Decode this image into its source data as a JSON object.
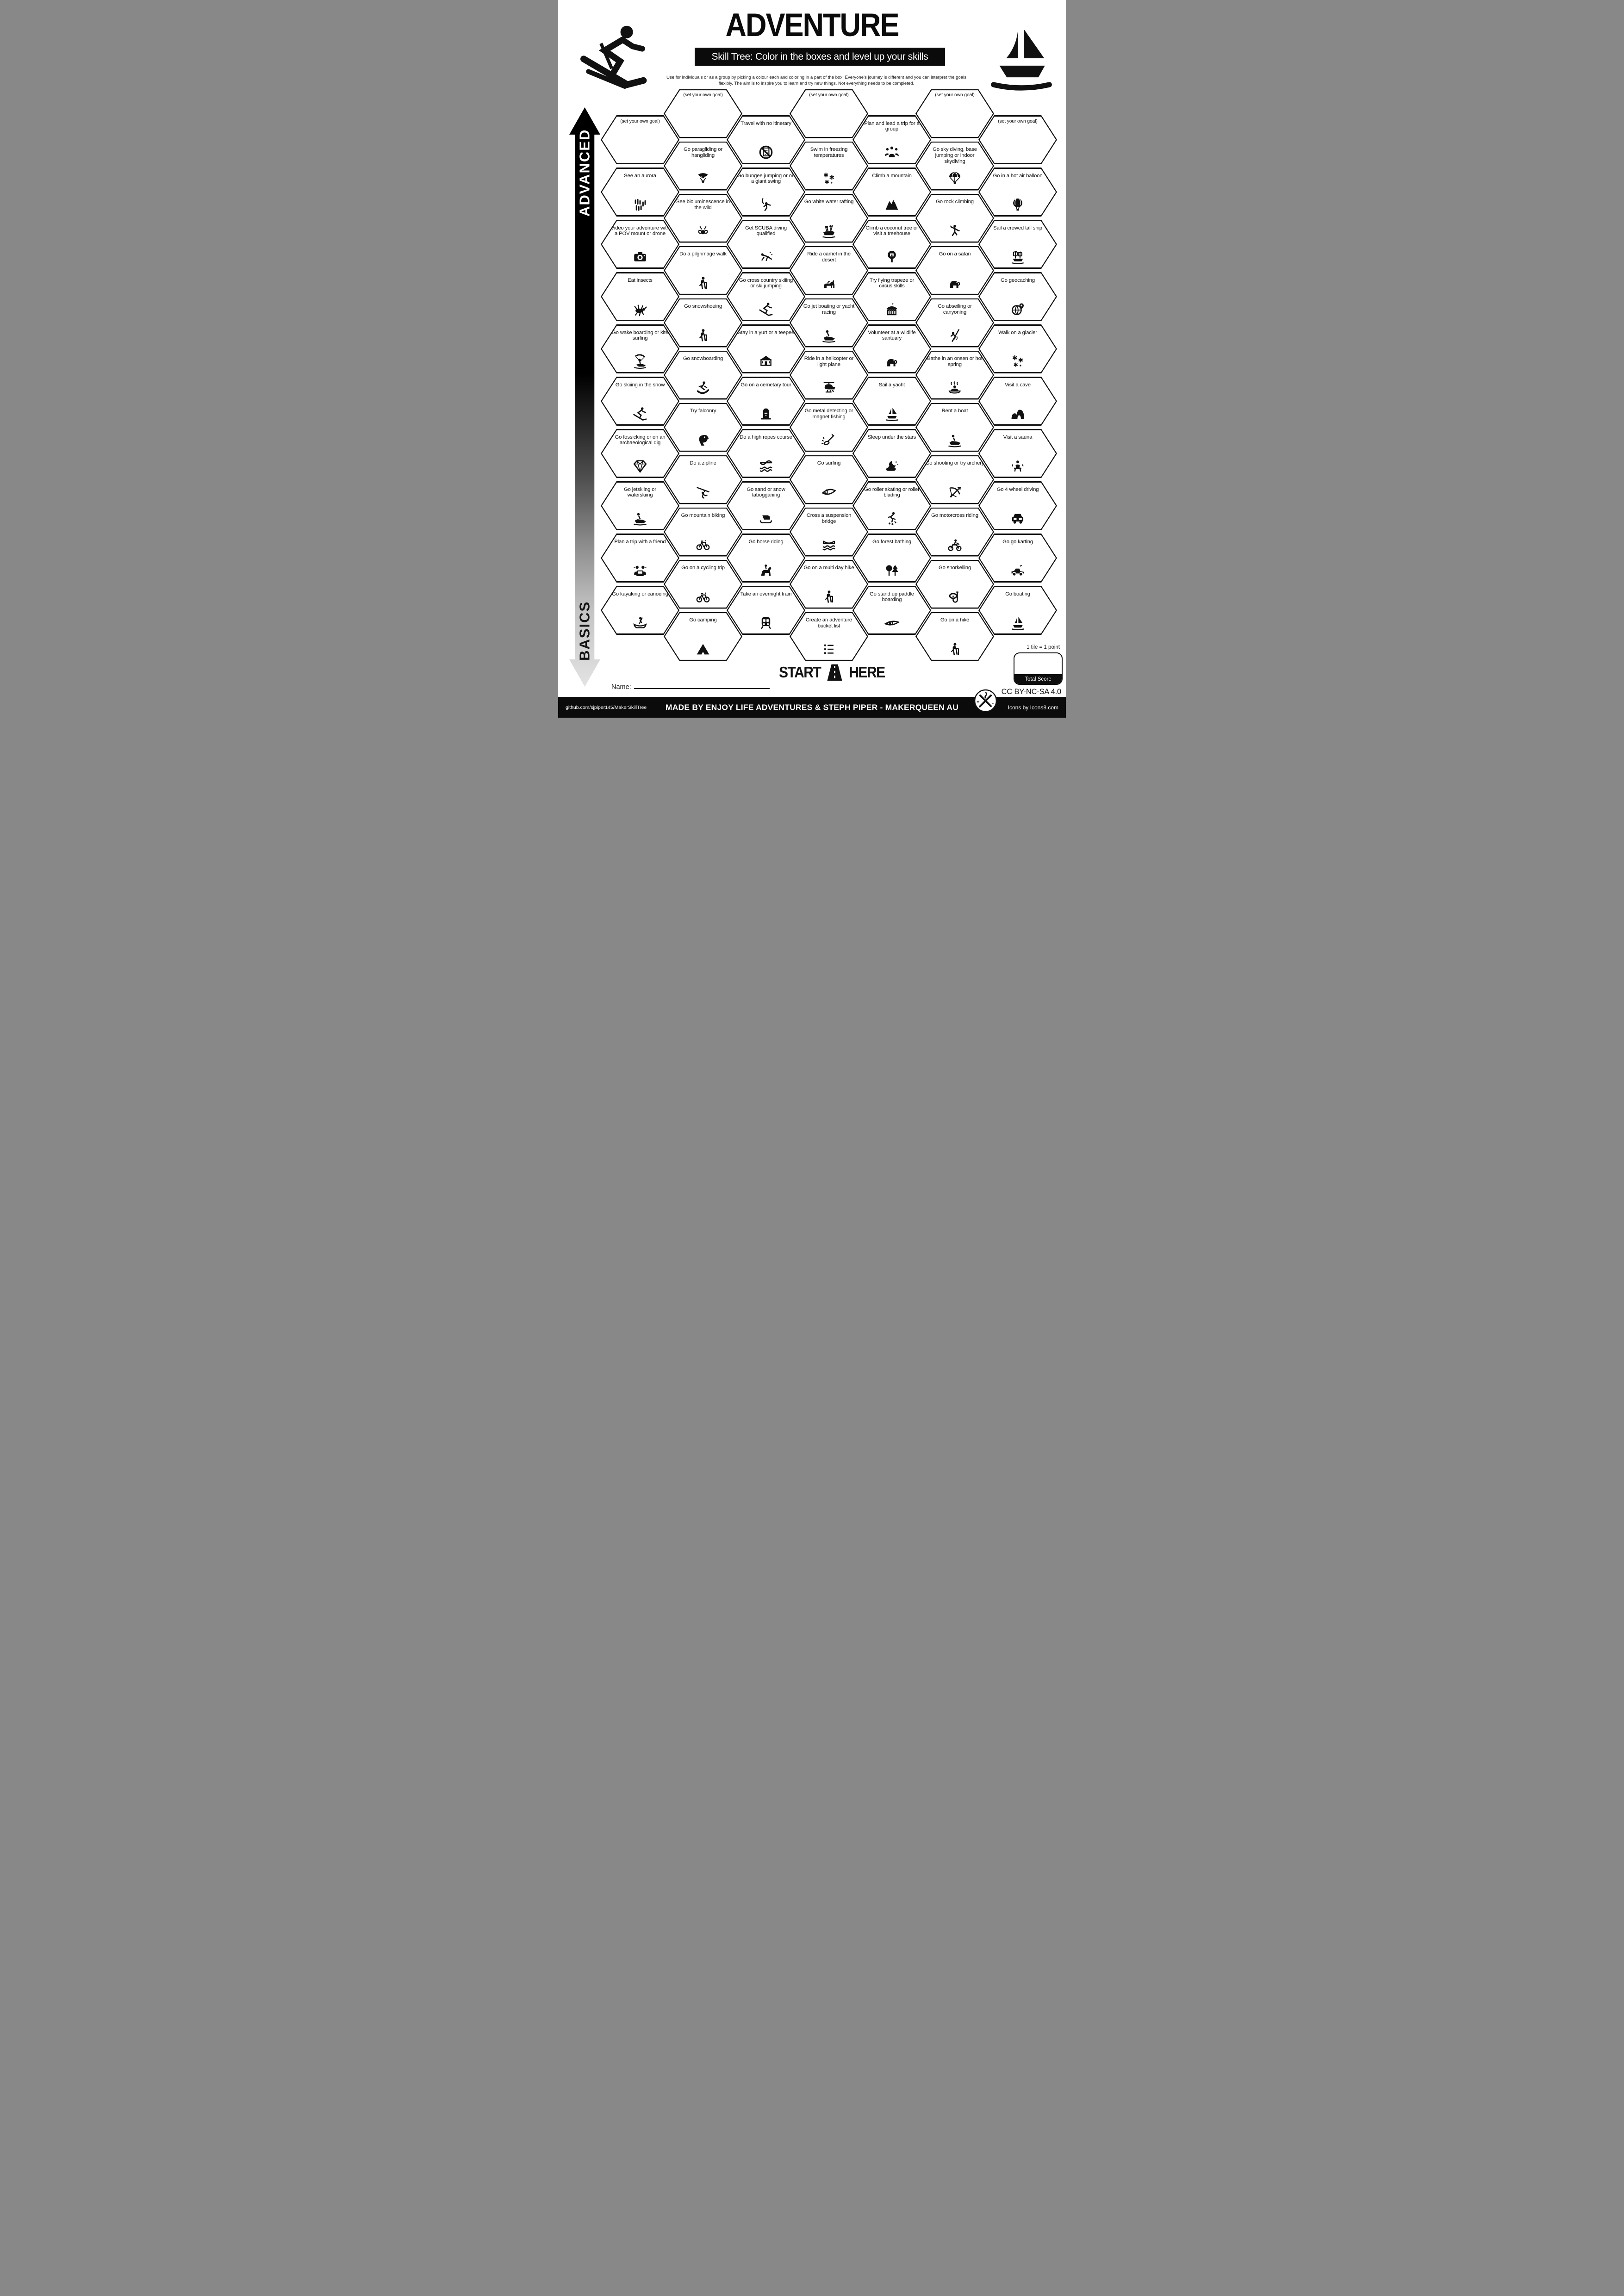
{
  "header": {
    "title": "ADVENTURE",
    "subtitle": "Skill Tree:  Color in the boxes and level up your skills",
    "instructions_line1": "Use for individuals or as a group by picking a colour each and coloring in a part of the box.  Everyone's journey is different and you can",
    "instructions_line2": "interpret the goals flexibly.  The aim is to inspire you to learn and try new things. Not everything needs to be completed."
  },
  "axis": {
    "top_label": "ADVANCED",
    "bottom_label": "BASICS"
  },
  "tiles": [
    {
      "col": 0,
      "row": 0,
      "label": "(set your own goal)",
      "icon": "none"
    },
    {
      "col": 0,
      "row": 1,
      "label": "See an aurora",
      "icon": "aurora"
    },
    {
      "col": 0,
      "row": 2,
      "label": "Video your adventure with a POV mount or drone",
      "icon": "camera"
    },
    {
      "col": 0,
      "row": 3,
      "label": "Eat insects",
      "icon": "grasshopper"
    },
    {
      "col": 0,
      "row": 4,
      "label": "Go wake boarding or kite surfing",
      "icon": "kitesurfer"
    },
    {
      "col": 0,
      "row": 5,
      "label": "Go skiiing in the snow",
      "icon": "skier"
    },
    {
      "col": 0,
      "row": 6,
      "label": "Go fossicking or on an archaeological dig",
      "icon": "gemstone"
    },
    {
      "col": 0,
      "row": 7,
      "label": "Go jetskiing or waterskiing",
      "icon": "jetski"
    },
    {
      "col": 0,
      "row": 8,
      "label": "Plan a trip with a friend",
      "icon": "trip-planners"
    },
    {
      "col": 0,
      "row": 9,
      "label": "Go kayaking or canoeing",
      "icon": "canoe"
    },
    {
      "col": 1,
      "row": 0,
      "label": "(set your own goal)",
      "icon": "none"
    },
    {
      "col": 1,
      "row": 1,
      "label": "Go paragliding or hangliding",
      "icon": "paraglider"
    },
    {
      "col": 1,
      "row": 2,
      "label": "See bioluminescence in the wild",
      "icon": "firefly"
    },
    {
      "col": 1,
      "row": 3,
      "label": "Do a pilgrimage walk",
      "icon": "hiker"
    },
    {
      "col": 1,
      "row": 4,
      "label": "Go snowshoeing",
      "icon": "hiker"
    },
    {
      "col": 1,
      "row": 5,
      "label": "Go snowboarding",
      "icon": "snowboarder"
    },
    {
      "col": 1,
      "row": 6,
      "label": "Try falconry",
      "icon": "falcon"
    },
    {
      "col": 1,
      "row": 7,
      "label": "Do a zipline",
      "icon": "zipliner"
    },
    {
      "col": 1,
      "row": 8,
      "label": "Go mountain biking",
      "icon": "bicycle"
    },
    {
      "col": 1,
      "row": 9,
      "label": "Go on a cycling trip",
      "icon": "bicycle"
    },
    {
      "col": 1,
      "row": 10,
      "label": "Go camping",
      "icon": "tent"
    },
    {
      "col": 2,
      "row": 0,
      "label": "Travel with no itinerary",
      "icon": "no-itinerary"
    },
    {
      "col": 2,
      "row": 1,
      "label": "Go bungee jumping or on a giant swing",
      "icon": "bungee-jumper"
    },
    {
      "col": 2,
      "row": 2,
      "label": "Get SCUBA diving qualified",
      "icon": "scuba-diver"
    },
    {
      "col": 2,
      "row": 3,
      "label": "Go cross country skiiing or ski jumping",
      "icon": "skier"
    },
    {
      "col": 2,
      "row": 4,
      "label": "Stay in a yurt or a teepee",
      "icon": "yurt"
    },
    {
      "col": 2,
      "row": 5,
      "label": "Go on a cemetary tour",
      "icon": "tombstone"
    },
    {
      "col": 2,
      "row": 6,
      "label": "Do a high ropes course",
      "icon": "rope-course"
    },
    {
      "col": 2,
      "row": 7,
      "label": "Go sand  or snow tabogganing",
      "icon": "toboggan"
    },
    {
      "col": 2,
      "row": 8,
      "label": "Go horse riding",
      "icon": "horse-rider"
    },
    {
      "col": 2,
      "row": 9,
      "label": "Take an overnight train",
      "icon": "train"
    },
    {
      "col": 3,
      "row": 0,
      "label": "(set your own goal)",
      "icon": "none"
    },
    {
      "col": 3,
      "row": 1,
      "label": "Swim in freezing temperatures",
      "icon": "snowflakes"
    },
    {
      "col": 3,
      "row": 2,
      "label": "Go white water rafting",
      "icon": "raft"
    },
    {
      "col": 3,
      "row": 3,
      "label": "Ride a camel in the desert",
      "icon": "camel"
    },
    {
      "col": 3,
      "row": 4,
      "label": "Go jet boating or yacht racing",
      "icon": "jetski"
    },
    {
      "col": 3,
      "row": 5,
      "label": "Ride in a helicopter or light plane",
      "icon": "helicopter"
    },
    {
      "col": 3,
      "row": 6,
      "label": "Go metal detecting or magnet fishing",
      "icon": "metal-detector"
    },
    {
      "col": 3,
      "row": 7,
      "label": "Go surfing",
      "icon": "surfboard"
    },
    {
      "col": 3,
      "row": 8,
      "label": "Cross a suspension bridge",
      "icon": "suspension-bridge"
    },
    {
      "col": 3,
      "row": 9,
      "label": "Go on a multi day hike",
      "icon": "hiker"
    },
    {
      "col": 3,
      "row": 10,
      "label": "Create an adventure bucket list",
      "icon": "bucket-list"
    },
    {
      "col": 4,
      "row": 0,
      "label": "Plan and lead a trip for a group",
      "icon": "people-group"
    },
    {
      "col": 4,
      "row": 1,
      "label": "Climb a mountain",
      "icon": "mountain"
    },
    {
      "col": 4,
      "row": 2,
      "label": "Climb a coconut tree or visit a treehouse",
      "icon": "treehouse"
    },
    {
      "col": 4,
      "row": 3,
      "label": "Try flying trapeze or circus skills",
      "icon": "circus-tent"
    },
    {
      "col": 4,
      "row": 4,
      "label": "Volunteer at a wildlife santuary",
      "icon": "elephant"
    },
    {
      "col": 4,
      "row": 5,
      "label": "Sail a yacht",
      "icon": "sailboat"
    },
    {
      "col": 4,
      "row": 6,
      "label": "Sleep under the stars",
      "icon": "night-sky"
    },
    {
      "col": 4,
      "row": 7,
      "label": "Go roller skating or roller blading",
      "icon": "roller-skater"
    },
    {
      "col": 4,
      "row": 8,
      "label": "Go forest bathing",
      "icon": "forest"
    },
    {
      "col": 4,
      "row": 9,
      "label": "Go stand up paddle boarding",
      "icon": "paddleboard"
    },
    {
      "col": 5,
      "row": 0,
      "label": "(set your own goal)",
      "icon": "none"
    },
    {
      "col": 5,
      "row": 1,
      "label": "Go sky diving, base jumping or indoor skydiving",
      "icon": "parachute"
    },
    {
      "col": 5,
      "row": 2,
      "label": "Go rock climbing",
      "icon": "rock-climber"
    },
    {
      "col": 5,
      "row": 3,
      "label": "Go on a safari",
      "icon": "elephant"
    },
    {
      "col": 5,
      "row": 4,
      "label": "Go abseiling or canyoning",
      "icon": "abseiler"
    },
    {
      "col": 5,
      "row": 5,
      "label": "Bathe in an onsen or hot spring",
      "icon": "onsen"
    },
    {
      "col": 5,
      "row": 6,
      "label": "Rent a boat",
      "icon": "jetski"
    },
    {
      "col": 5,
      "row": 7,
      "label": "Go shooting or try archery",
      "icon": "archery"
    },
    {
      "col": 5,
      "row": 8,
      "label": "Go motorcross riding",
      "icon": "motocross"
    },
    {
      "col": 5,
      "row": 9,
      "label": "Go snorkelling",
      "icon": "snorkel"
    },
    {
      "col": 5,
      "row": 10,
      "label": "Go on a hike",
      "icon": "hiker"
    },
    {
      "col": 6,
      "row": 0,
      "label": "(set your own goal)",
      "icon": "none"
    },
    {
      "col": 6,
      "row": 1,
      "label": "Go in a hot air balloon",
      "icon": "hot-air-balloon"
    },
    {
      "col": 6,
      "row": 2,
      "label": "Sail a crewed tall ship",
      "icon": "tall-ship"
    },
    {
      "col": 6,
      "row": 3,
      "label": "Go geocaching",
      "icon": "geocache"
    },
    {
      "col": 6,
      "row": 4,
      "label": "Walk on a glacier",
      "icon": "snowflakes"
    },
    {
      "col": 6,
      "row": 5,
      "label": "Visit a cave",
      "icon": "cave"
    },
    {
      "col": 6,
      "row": 6,
      "label": "Visit a sauna",
      "icon": "sauna"
    },
    {
      "col": 6,
      "row": 7,
      "label": "Go 4 wheel driving",
      "icon": "four-wheel-drive"
    },
    {
      "col": 6,
      "row": 8,
      "label": "Go go karting",
      "icon": "go-kart"
    },
    {
      "col": 6,
      "row": 9,
      "label": "Go boating",
      "icon": "sailboat"
    }
  ],
  "start": {
    "start_label": "START",
    "here_label": "HERE"
  },
  "name_field": {
    "label": "Name:"
  },
  "score": {
    "tile_note": "1 tile = 1 point",
    "total_label": "Total Score"
  },
  "license": {
    "text": "CC BY-NC-SA 4.0"
  },
  "footer": {
    "left": "github.com/sjpiper145/MakerSkillTree",
    "center": "MADE BY ENJOY LIFE ADVENTURES & STEPH PIPER  -  MAKERQUEEN AU",
    "right": "Icons by Icons8.com"
  },
  "colors": {
    "ink": "#0b0b0b",
    "paper": "#ffffff"
  }
}
